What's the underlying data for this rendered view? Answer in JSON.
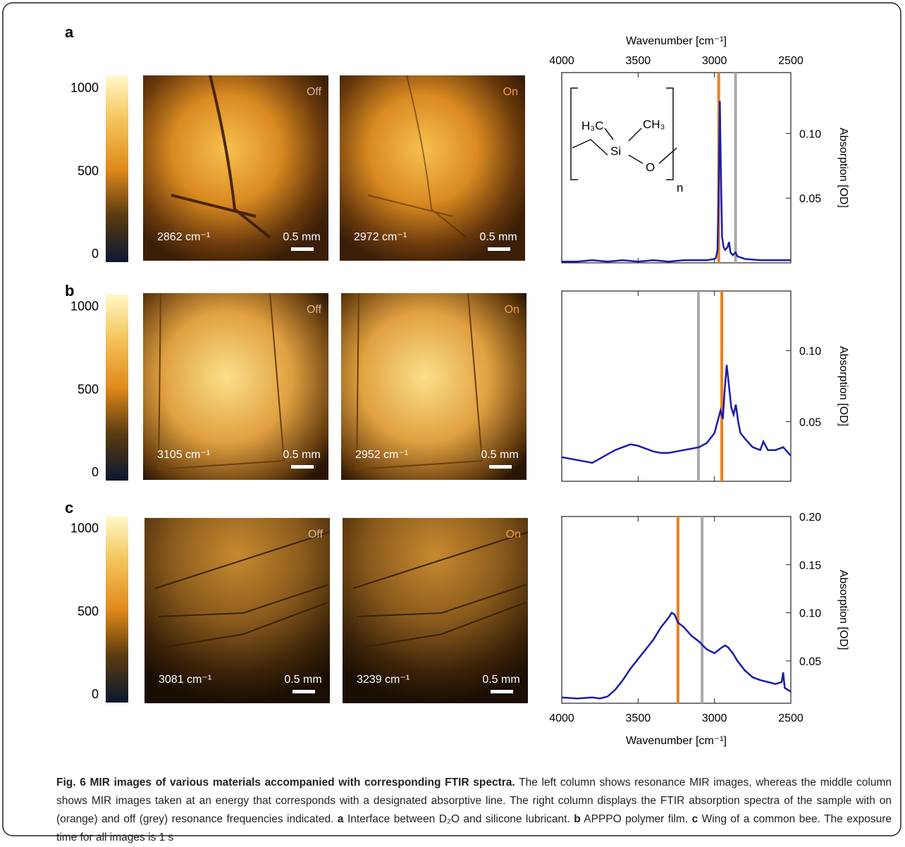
{
  "panels": [
    {
      "label": "a",
      "images": [
        {
          "tag": "Off",
          "wavenumber": "2862 cm⁻¹",
          "scale": "0.5 mm"
        },
        {
          "tag": "On",
          "wavenumber": "2972 cm⁻¹",
          "scale": "0.5 mm"
        }
      ],
      "structure": [
        "H₃C",
        "CH₃",
        "Si",
        "O",
        "n"
      ]
    },
    {
      "label": "b",
      "images": [
        {
          "tag": "Off",
          "wavenumber": "3105 cm⁻¹",
          "scale": "0.5 mm"
        },
        {
          "tag": "On",
          "wavenumber": "2952 cm⁻¹",
          "scale": "0.5 mm"
        }
      ]
    },
    {
      "label": "c",
      "images": [
        {
          "tag": "Off",
          "wavenumber": "3081 cm⁻¹",
          "scale": "0.5 mm"
        },
        {
          "tag": "On",
          "wavenumber": "3239 cm⁻¹",
          "scale": "0.5 mm"
        }
      ]
    }
  ],
  "colorbar": {
    "lim": [
      -50,
      1070
    ],
    "ticks": [
      0,
      500,
      1000
    ]
  },
  "chart_data": [
    {
      "type": "line",
      "xlabel": "Wavenumber [cm⁻¹]",
      "ylabel": "Absorption [OD]",
      "xaxis": "top",
      "xlim": [
        4000,
        2500
      ],
      "xticks": [
        4000,
        3500,
        3000,
        2500
      ],
      "ylim": [
        0,
        0.147
      ],
      "yticks": [
        0.05,
        {
          "value": 0.1,
          "label": "0.10"
        }
      ],
      "x": [
        4000,
        3900,
        3800,
        3700,
        3600,
        3500,
        3400,
        3300,
        3200,
        3100,
        3050,
        3000,
        2990,
        2980,
        2972,
        2965,
        2958,
        2950,
        2940,
        2930,
        2915,
        2905,
        2895,
        2880,
        2862,
        2850,
        2800,
        2700,
        2600,
        2500
      ],
      "series": [
        {
          "color": "#1c1ca8",
          "values": [
            0.001,
            0.001,
            0.002,
            0.001,
            0.002,
            0.001,
            0.002,
            0.001,
            0.002,
            0.002,
            0.002,
            0.003,
            0.004,
            0.01,
            0.06,
            0.125,
            0.07,
            0.02,
            0.012,
            0.01,
            0.012,
            0.016,
            0.008,
            0.006,
            0.008,
            0.005,
            0.003,
            0.002,
            0.002,
            0.002
          ]
        }
      ],
      "markers": [
        {
          "x": 2972,
          "color": "#e8821e"
        },
        {
          "x": 2862,
          "color": "#aaaaaa"
        }
      ]
    },
    {
      "type": "line",
      "ylabel": "Absorption [OD]",
      "xaxis": "none",
      "xlim": [
        4000,
        2500
      ],
      "xticks": [
        4000,
        3500,
        3000,
        2500
      ],
      "ylim": [
        0.008,
        0.142
      ],
      "yticks": [
        0.05,
        {
          "value": 0.1,
          "label": "0.10"
        }
      ],
      "x": [
        4000,
        3950,
        3900,
        3850,
        3800,
        3750,
        3700,
        3650,
        3600,
        3550,
        3500,
        3450,
        3400,
        3350,
        3300,
        3250,
        3200,
        3150,
        3100,
        3050,
        3000,
        2980,
        2960,
        2945,
        2935,
        2920,
        2905,
        2890,
        2875,
        2860,
        2845,
        2830,
        2800,
        2750,
        2700,
        2680,
        2650,
        2600,
        2550,
        2500
      ],
      "series": [
        {
          "color": "#1c1ca8",
          "values": [
            0.025,
            0.024,
            0.023,
            0.022,
            0.021,
            0.024,
            0.027,
            0.03,
            0.032,
            0.034,
            0.033,
            0.031,
            0.029,
            0.028,
            0.028,
            0.029,
            0.03,
            0.031,
            0.032,
            0.035,
            0.042,
            0.05,
            0.058,
            0.052,
            0.07,
            0.09,
            0.075,
            0.06,
            0.055,
            0.062,
            0.05,
            0.042,
            0.038,
            0.032,
            0.03,
            0.036,
            0.03,
            0.03,
            0.032,
            0.026
          ]
        }
      ],
      "markers": [
        {
          "x": 3105,
          "color": "#aaaaaa"
        },
        {
          "x": 2952,
          "color": "#e8821e"
        }
      ]
    },
    {
      "type": "line",
      "xlabel": "Wavenumber [cm⁻¹]",
      "ylabel": "Absorption [OD]",
      "xaxis": "bottom",
      "xlim": [
        4000,
        2500
      ],
      "xticks": [
        4000,
        3500,
        3000,
        2500
      ],
      "ylim": [
        0.006,
        0.2
      ],
      "yticks": [
        0.05,
        {
          "value": 0.1,
          "label": "0.10"
        },
        0.15,
        {
          "value": 0.2,
          "label": "0.20"
        }
      ],
      "x": [
        4000,
        3900,
        3800,
        3750,
        3700,
        3650,
        3600,
        3550,
        3500,
        3450,
        3400,
        3350,
        3300,
        3280,
        3260,
        3240,
        3200,
        3150,
        3100,
        3070,
        3050,
        3000,
        2960,
        2930,
        2910,
        2880,
        2850,
        2800,
        2750,
        2700,
        2650,
        2600,
        2560,
        2550,
        2540,
        2520,
        2500
      ],
      "series": [
        {
          "color": "#1c1ca8",
          "values": [
            0.012,
            0.011,
            0.012,
            0.011,
            0.013,
            0.02,
            0.03,
            0.042,
            0.052,
            0.062,
            0.072,
            0.085,
            0.095,
            0.1,
            0.098,
            0.09,
            0.085,
            0.076,
            0.07,
            0.065,
            0.062,
            0.058,
            0.063,
            0.066,
            0.064,
            0.058,
            0.05,
            0.04,
            0.033,
            0.03,
            0.028,
            0.026,
            0.028,
            0.038,
            0.022,
            0.02,
            0.018
          ]
        }
      ],
      "markers": [
        {
          "x": 3239,
          "color": "#e8821e"
        },
        {
          "x": 3081,
          "color": "#aaaaaa"
        }
      ]
    }
  ],
  "caption": {
    "title": "Fig. 6 MIR images of various materials accompanied with corresponding FTIR spectra.",
    "text": "The left column shows resonance MIR images, whereas the middle column shows MIR images taken at an energy that corresponds with a designated absorptive line. The right column displays the FTIR absorption spectra of the sample with on (orange) and off (grey) resonance frequencies indicated.",
    "items": [
      {
        "label": "a",
        "text": "Interface between D₂O and silicone lubricant."
      },
      {
        "label": "b",
        "text": "APPPO polymer film."
      },
      {
        "label": "c",
        "text": "Wing of a common bee."
      }
    ],
    "end": "The exposure time for all images is 1 s"
  }
}
